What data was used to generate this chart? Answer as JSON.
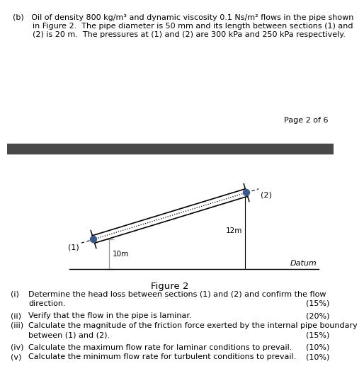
{
  "title_line1": "(b)   Oil of density 800 kg/m³ and dynamic viscosity 0.1 Ns/m² flows in the pipe shown",
  "title_line2": "        in Figure 2.  The pipe diameter is 50 mm and its length between sections (1) and",
  "title_line3": "        (2) is 20 m.  The pressures at (1) and (2) are 300 kPa and 250 kPa respectively.",
  "page_text": "Page 2 of 6",
  "figure_label": "Figure 2",
  "datum_text": "Datum",
  "label_1": "(1)",
  "label_2": "(2)",
  "label_10m": "10m",
  "label_12m": "12m",
  "separator_color": "#484848",
  "pipe_color": "#3a5a8a",
  "questions": [
    {
      "roman": "(i)",
      "text": "Determine the head loss between sections (1) and (2) and confirm the flow\n        direction.",
      "marks": "(15%)"
    },
    {
      "roman": "(ii)",
      "text": "Verify that the flow in the pipe is laminar.",
      "marks": "(20%)"
    },
    {
      "roman": "(iii)",
      "text": "Calculate the magnitude of the friction force exerted by the internal pipe boundary\n        between (1) and (2).",
      "marks": "(15%)"
    },
    {
      "roman": "(iv)",
      "text": "Calculate the maximum flow rate for laminar conditions to prevail.",
      "marks": "(10%)"
    },
    {
      "roman": "(v)",
      "text": "Calculate the minimum flow rate for turbulent conditions to prevail.",
      "marks": "(10%)"
    }
  ],
  "bg_color": "#ffffff",
  "text_color": "#000000"
}
